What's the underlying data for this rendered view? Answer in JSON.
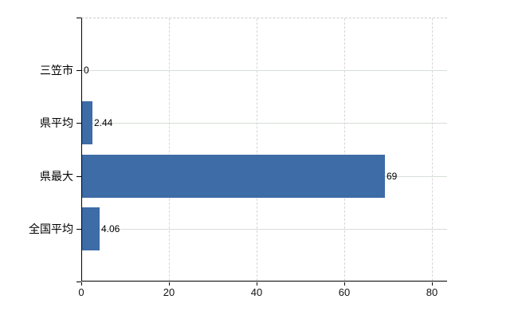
{
  "chart_data": {
    "type": "bar",
    "orientation": "horizontal",
    "title": "",
    "xlabel": "",
    "ylabel": "",
    "categories": [
      "三笠市",
      "県平均",
      "県最大",
      "全国平均"
    ],
    "values": [
      0,
      2.44,
      69,
      4.06
    ],
    "value_labels": [
      "0",
      "2.44",
      "69",
      "4.06"
    ],
    "x_ticks": [
      0,
      20,
      40,
      60,
      80
    ],
    "x_tick_labels": [
      "0",
      "20",
      "40",
      "60",
      "80"
    ],
    "xlim": [
      0,
      83.5
    ],
    "grid": "on",
    "legend_position": "none",
    "bar_color": "#3d6ca6",
    "axis_color": "#000000",
    "hgrid_color": "#d6ded6",
    "vgrid_color": "#d9d4da",
    "plot_top_border_color": "#cccccc",
    "background_color": "#ffffff"
  }
}
